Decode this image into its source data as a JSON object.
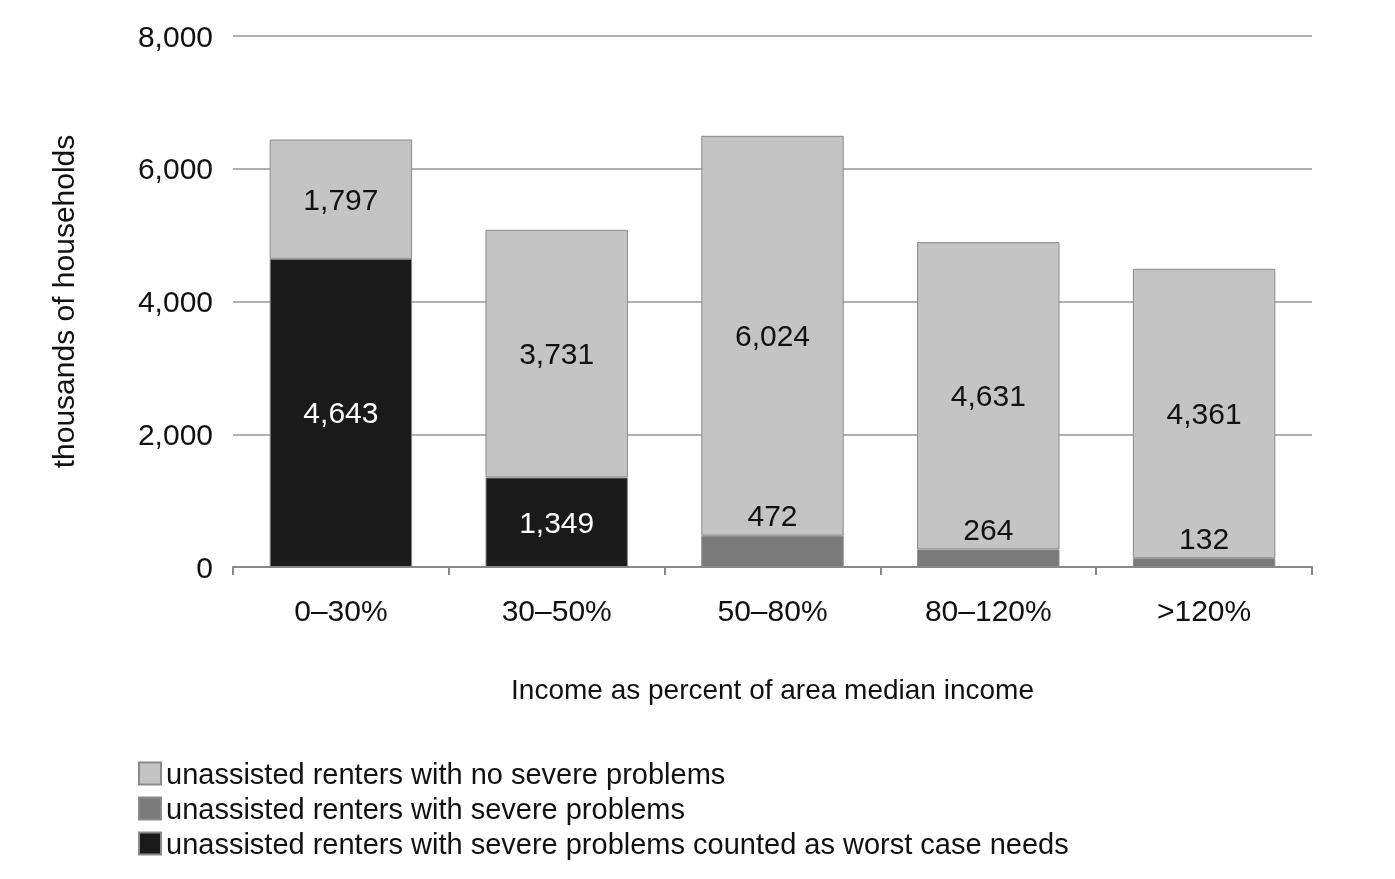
{
  "chart_data": {
    "type": "bar",
    "stacked": true,
    "xlabel": "Income as percent of area median income",
    "ylabel": "thousands of households",
    "categories": [
      "0–30%",
      "30–50%",
      "50–80%",
      "80–120%",
      ">120%"
    ],
    "series": [
      {
        "name": "unassisted renters with severe problems counted as worst case needs",
        "color": "#1a1a1a",
        "values": [
          4643,
          1349,
          null,
          null,
          null
        ],
        "value_labels": [
          "4,643",
          "1,349",
          null,
          null,
          null
        ]
      },
      {
        "name": "unassisted renters with severe problems",
        "color": "#7a7a7a",
        "values": [
          null,
          null,
          472,
          264,
          132
        ],
        "value_labels": [
          null,
          null,
          "472",
          "264",
          "132"
        ]
      },
      {
        "name": "unassisted renters with no severe problems",
        "color": "#c4c4c4",
        "values": [
          1797,
          3731,
          6024,
          4631,
          4361
        ],
        "value_labels": [
          "1,797",
          "3,731",
          "6,024",
          "4,631",
          "4,361"
        ]
      }
    ],
    "ylim": [
      0,
      8000
    ],
    "yticks": [
      0,
      {
        "value": 2000,
        "label": "2,000"
      },
      {
        "value": 4000,
        "label": "4,000"
      },
      {
        "value": 6000,
        "label": "6,000"
      },
      {
        "value": 8000,
        "label": "8,000"
      }
    ],
    "grid": "y",
    "legend": "bottom"
  }
}
